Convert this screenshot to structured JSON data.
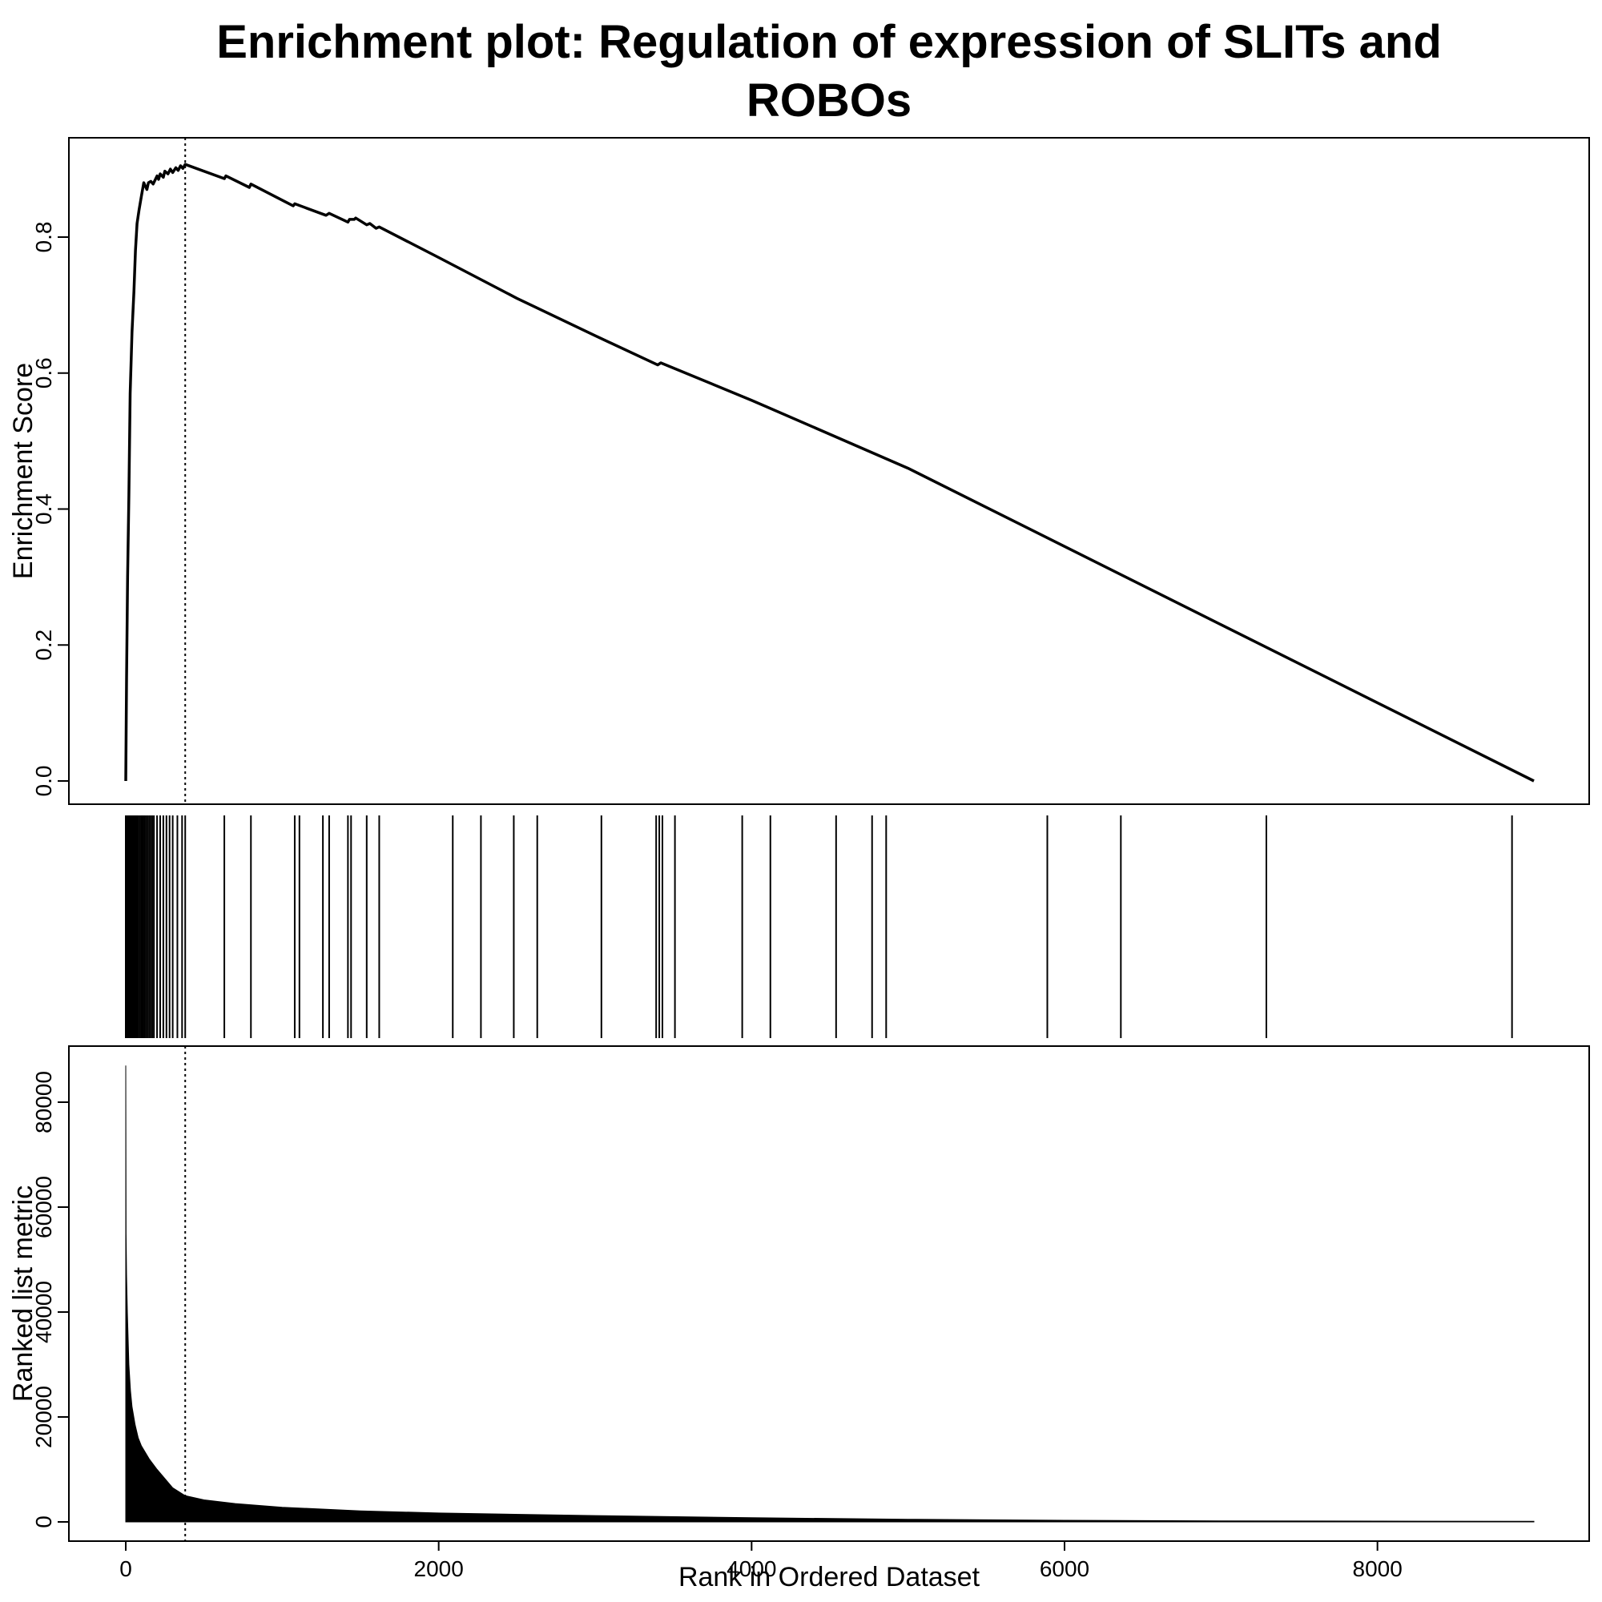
{
  "chart_data": {
    "type": "line",
    "title_lines": [
      "Enrichment plot: Regulation of expression of SLITs and",
      "ROBOs"
    ],
    "xlabel": "Rank in Ordered Dataset",
    "x_ticks": [
      0,
      2000,
      4000,
      6000,
      8000
    ],
    "xlim": [
      0,
      9000
    ],
    "peak_rank": 380,
    "panels": {
      "enrichment": {
        "ylabel": "Enrichment Score",
        "ylim": [
          0,
          0.92
        ],
        "y_ticks": [
          "0.0",
          "0.2",
          "0.4",
          "0.6",
          "0.8"
        ],
        "y_tick_values": [
          0.0,
          0.2,
          0.4,
          0.6,
          0.8
        ],
        "series": {
          "x": [
            0,
            5,
            12,
            20,
            28,
            40,
            52,
            62,
            72,
            85,
            100,
            115,
            125,
            135,
            145,
            160,
            175,
            200,
            210,
            220,
            240,
            250,
            270,
            285,
            300,
            320,
            335,
            350,
            365,
            380,
            630,
            640,
            790,
            800,
            1070,
            1080,
            1280,
            1300,
            1420,
            1430,
            1460,
            1470,
            1540,
            1560,
            1600,
            1620,
            2000,
            2500,
            3000,
            3400,
            3420,
            4000,
            5000,
            6000,
            7000,
            8000,
            9000
          ],
          "y": [
            0.0,
            0.15,
            0.3,
            0.42,
            0.57,
            0.66,
            0.72,
            0.78,
            0.82,
            0.84,
            0.86,
            0.88,
            0.875,
            0.87,
            0.88,
            0.882,
            0.878,
            0.89,
            0.885,
            0.893,
            0.888,
            0.897,
            0.893,
            0.9,
            0.895,
            0.902,
            0.898,
            0.905,
            0.901,
            0.907,
            0.886,
            0.89,
            0.873,
            0.878,
            0.846,
            0.849,
            0.832,
            0.835,
            0.822,
            0.826,
            0.826,
            0.828,
            0.818,
            0.82,
            0.813,
            0.815,
            0.77,
            0.71,
            0.655,
            0.612,
            0.615,
            0.56,
            0.46,
            0.345,
            0.23,
            0.115,
            0.0
          ]
        }
      },
      "hits": {
        "positions": [
          0,
          5,
          10,
          15,
          20,
          25,
          30,
          35,
          40,
          45,
          50,
          55,
          60,
          65,
          70,
          75,
          80,
          90,
          100,
          110,
          120,
          130,
          140,
          150,
          160,
          170,
          180,
          200,
          220,
          240,
          260,
          280,
          300,
          330,
          360,
          380,
          630,
          800,
          1080,
          1110,
          1260,
          1300,
          1420,
          1440,
          1540,
          1620,
          2090,
          2270,
          2480,
          2630,
          3040,
          3390,
          3410,
          3430,
          3510,
          3940,
          4120,
          4540,
          4770,
          4860,
          5890,
          6360,
          7290,
          8860
        ]
      },
      "metric": {
        "ylabel": "Ranked list metric",
        "ylim": [
          0,
          90000
        ],
        "y_ticks": [
          "0",
          "20000",
          "40000",
          "60000",
          "80000"
        ],
        "y_tick_values": [
          0,
          20000,
          40000,
          60000,
          80000
        ],
        "series": {
          "x": [
            0,
            2,
            5,
            10,
            20,
            30,
            40,
            60,
            80,
            100,
            150,
            200,
            300,
            380,
            500,
            700,
            1000,
            1500,
            2000,
            3000,
            4000,
            5000,
            6000,
            7000,
            8000,
            9000
          ],
          "y": [
            87000,
            55000,
            47000,
            40000,
            30000,
            25000,
            22000,
            18500,
            16000,
            14500,
            12000,
            10000,
            6500,
            5000,
            4200,
            3500,
            2800,
            2100,
            1700,
            1200,
            800,
            500,
            300,
            200,
            150,
            100
          ]
        }
      }
    }
  }
}
